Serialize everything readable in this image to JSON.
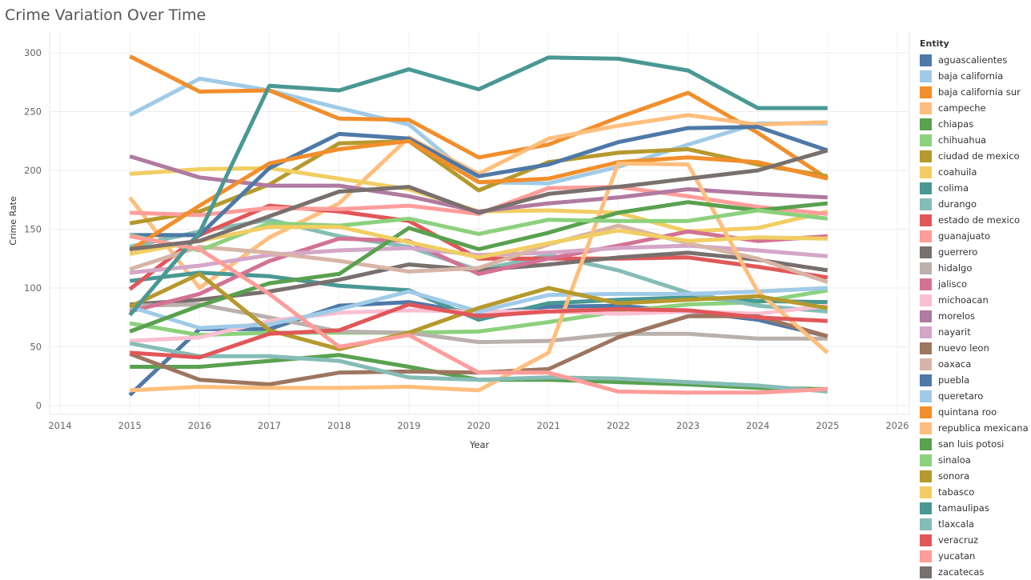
{
  "chart_data": {
    "type": "line",
    "title": "Crime Variation Over Time",
    "xlabel": "Year",
    "ylabel": "Crime Rate",
    "x": [
      2015,
      2016,
      2017,
      2018,
      2019,
      2020,
      2021,
      2022,
      2023,
      2024,
      2025
    ],
    "xlim": [
      2014,
      2026
    ],
    "xticks": [
      "2014",
      "2015",
      "2016",
      "2017",
      "2018",
      "2019",
      "2020",
      "2021",
      "2022",
      "2023",
      "2024",
      "2025",
      "2026"
    ],
    "ylim": [
      0,
      300
    ],
    "yticks": [
      "0",
      "50",
      "100",
      "150",
      "200",
      "250",
      "300"
    ],
    "grid": true,
    "legend_title": "Entity",
    "legend_position": "right",
    "series": [
      {
        "name": "aguascalientes",
        "color": "#4e79a7",
        "values": [
          9,
          65,
          65,
          85,
          88,
          78,
          84,
          85,
          80,
          73,
          59
        ]
      },
      {
        "name": "baja california",
        "color": "#a0cbe8",
        "values": [
          247,
          278,
          268,
          253,
          239,
          190,
          189,
          203,
          222,
          240,
          240
        ]
      },
      {
        "name": "baja california sur",
        "color": "#f28e2b",
        "values": [
          297,
          267,
          268,
          244,
          243,
          211,
          222,
          245,
          266,
          232,
          193
        ]
      },
      {
        "name": "campeche",
        "color": "#ffbe7d",
        "values": [
          177,
          100,
          143,
          172,
          228,
          197,
          227,
          238,
          247,
          239,
          241
        ]
      },
      {
        "name": "chiapas",
        "color": "#59a14f",
        "values": [
          33,
          33,
          38,
          43,
          33,
          22,
          22,
          20,
          18,
          15,
          14
        ]
      },
      {
        "name": "chihuahua",
        "color": "#8cd17d",
        "values": [
          70,
          60,
          62,
          62,
          62,
          63,
          71,
          80,
          86,
          88,
          98
        ]
      },
      {
        "name": "ciudad de mexico",
        "color": "#b6992d",
        "values": [
          155,
          165,
          188,
          223,
          225,
          183,
          207,
          215,
          218,
          205,
          195
        ]
      },
      {
        "name": "coahuila",
        "color": "#f1ce63",
        "values": [
          197,
          201,
          202,
          193,
          184,
          165,
          166,
          164,
          148,
          151,
          165
        ]
      },
      {
        "name": "colima",
        "color": "#499894",
        "values": [
          106,
          113,
          110,
          102,
          98,
          73,
          87,
          90,
          92,
          89,
          88
        ]
      },
      {
        "name": "durango",
        "color": "#86bcb6",
        "values": [
          135,
          148,
          158,
          144,
          135,
          115,
          128,
          115,
          96,
          85,
          80
        ]
      },
      {
        "name": "estado de mexico",
        "color": "#e15759",
        "values": [
          99,
          145,
          170,
          165,
          157,
          125,
          125,
          125,
          126,
          118,
          109
        ]
      },
      {
        "name": "guanajuato",
        "color": "#ff9d9a",
        "values": [
          164,
          162,
          168,
          167,
          170,
          163,
          185,
          186,
          178,
          169,
          163
        ]
      },
      {
        "name": "guerrero",
        "color": "#79706e",
        "values": [
          86,
          90,
          97,
          107,
          120,
          115,
          120,
          126,
          130,
          124,
          115
        ]
      },
      {
        "name": "hidalgo",
        "color": "#bab0ac",
        "values": [
          85,
          86,
          75,
          63,
          62,
          54,
          55,
          61,
          61,
          57,
          57
        ]
      },
      {
        "name": "jalisco",
        "color": "#d37295",
        "values": [
          80,
          95,
          123,
          142,
          140,
          112,
          125,
          136,
          148,
          140,
          144
        ]
      },
      {
        "name": "michoacan",
        "color": "#fabfd2",
        "values": [
          55,
          58,
          72,
          79,
          81,
          80,
          80,
          78,
          80,
          78,
          85
        ]
      },
      {
        "name": "morelos",
        "color": "#b07aa1",
        "values": [
          212,
          194,
          187,
          187,
          178,
          165,
          172,
          177,
          184,
          180,
          177
        ]
      },
      {
        "name": "nayarit",
        "color": "#d4a6c8",
        "values": [
          113,
          119,
          128,
          132,
          134,
          128,
          130,
          134,
          136,
          132,
          127
        ]
      },
      {
        "name": "nuevo leon",
        "color": "#9d7660",
        "values": [
          44,
          22,
          18,
          28,
          29,
          28,
          31,
          58,
          76,
          76,
          59
        ]
      },
      {
        "name": "oaxaca",
        "color": "#d7b5a6",
        "values": [
          116,
          135,
          130,
          123,
          114,
          117,
          137,
          153,
          138,
          125,
          105
        ]
      },
      {
        "name": "puebla",
        "color": "#4e79a7",
        "values": [
          145,
          145,
          202,
          231,
          227,
          195,
          205,
          224,
          236,
          237,
          217
        ]
      },
      {
        "name": "queretaro",
        "color": "#a0cbe8",
        "values": [
          84,
          66,
          69,
          82,
          97,
          80,
          94,
          95,
          95,
          97,
          100
        ]
      },
      {
        "name": "quintana roo",
        "color": "#f28e2b",
        "values": [
          132,
          170,
          206,
          218,
          225,
          190,
          193,
          207,
          211,
          207,
          193
        ]
      },
      {
        "name": "republica mexicana",
        "color": "#ffbe7d",
        "values": [
          13,
          16,
          15,
          15,
          16,
          13,
          45,
          206,
          205,
          97,
          45
        ]
      },
      {
        "name": "san luis potosi",
        "color": "#59a14f",
        "values": [
          63,
          85,
          104,
          112,
          151,
          133,
          147,
          164,
          173,
          166,
          172
        ]
      },
      {
        "name": "sinaloa",
        "color": "#8cd17d",
        "values": [
          145,
          132,
          155,
          153,
          159,
          146,
          158,
          157,
          157,
          166,
          159
        ]
      },
      {
        "name": "sonora",
        "color": "#b6992d",
        "values": [
          84,
          112,
          64,
          48,
          62,
          83,
          100,
          87,
          90,
          93,
          83
        ]
      },
      {
        "name": "tabasco",
        "color": "#f1ce63",
        "values": [
          129,
          140,
          152,
          152,
          139,
          126,
          138,
          149,
          140,
          143,
          142
        ]
      },
      {
        "name": "tamaulipas",
        "color": "#499894",
        "values": [
          77,
          147,
          272,
          268,
          286,
          269,
          296,
          295,
          285,
          253,
          253
        ]
      },
      {
        "name": "tlaxcala",
        "color": "#86bcb6",
        "values": [
          53,
          42,
          42,
          38,
          24,
          22,
          24,
          23,
          20,
          17,
          12
        ]
      },
      {
        "name": "veracruz",
        "color": "#e15759",
        "values": [
          45,
          41,
          61,
          64,
          86,
          76,
          80,
          82,
          81,
          75,
          72
        ]
      },
      {
        "name": "yucatan",
        "color": "#ff9d9a",
        "values": [
          144,
          133,
          95,
          50,
          60,
          28,
          28,
          12,
          11,
          11,
          14
        ]
      },
      {
        "name": "zacatecas",
        "color": "#79706e",
        "values": [
          133,
          140,
          161,
          182,
          186,
          164,
          180,
          186,
          193,
          200,
          217
        ]
      }
    ]
  }
}
